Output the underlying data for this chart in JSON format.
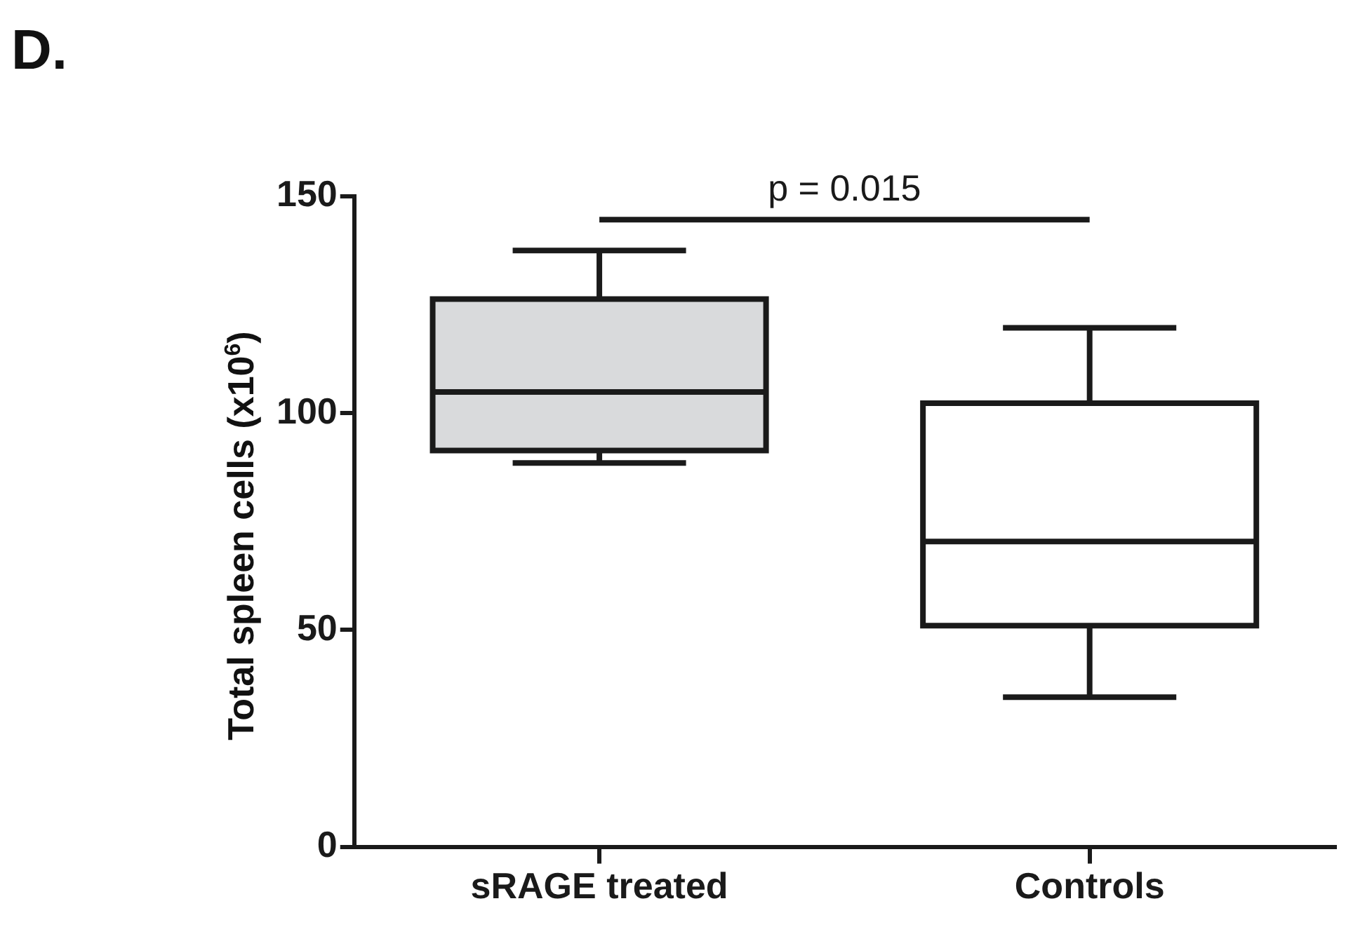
{
  "chart_data": {
    "type": "box",
    "title": "D.",
    "ylabel": "Total spleen cells (x10$^{6}$)",
    "categories": [
      "sRAGE treated",
      "Controls"
    ],
    "boxes": [
      {
        "low": 88.5,
        "q1": 91.4,
        "median": 104.9,
        "q3": 126.3,
        "high": 137.5
      },
      {
        "low": 34.5,
        "q1": 51,
        "median": 70.4,
        "q3": 102.3,
        "high": 119.7
      }
    ],
    "colors": [
      "#d9dadc",
      "#ffffff"
    ],
    "ylim": [
      0,
      150
    ],
    "yticks": [
      0,
      50,
      100,
      150
    ],
    "grid": false,
    "legend": false,
    "annotations": [
      "p = 0.015"
    ]
  }
}
